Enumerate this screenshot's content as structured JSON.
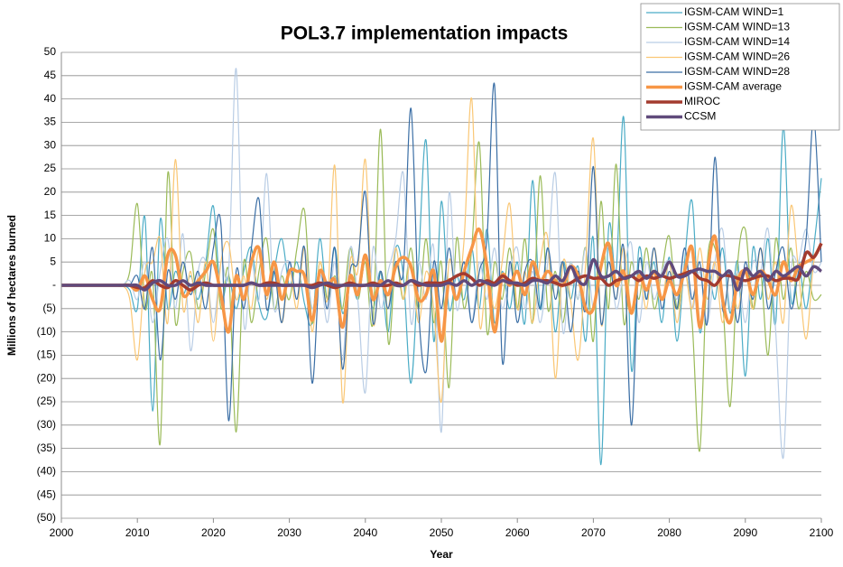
{
  "chart_data": {
    "type": "line",
    "title": "POL3.7 implementation impacts",
    "x_label": "Year",
    "y_label": "Millions of hectares burned",
    "x": [
      2000,
      2001,
      2002,
      2003,
      2004,
      2005,
      2006,
      2007,
      2008,
      2009,
      2010,
      2011,
      2012,
      2013,
      2014,
      2015,
      2016,
      2017,
      2018,
      2019,
      2020,
      2021,
      2022,
      2023,
      2024,
      2025,
      2026,
      2027,
      2028,
      2029,
      2030,
      2031,
      2032,
      2033,
      2034,
      2035,
      2036,
      2037,
      2038,
      2039,
      2040,
      2041,
      2042,
      2043,
      2044,
      2045,
      2046,
      2047,
      2048,
      2049,
      2050,
      2051,
      2052,
      2053,
      2054,
      2055,
      2056,
      2057,
      2058,
      2059,
      2060,
      2061,
      2062,
      2063,
      2064,
      2065,
      2066,
      2067,
      2068,
      2069,
      2070,
      2071,
      2072,
      2073,
      2074,
      2075,
      2076,
      2077,
      2078,
      2079,
      2080,
      2081,
      2082,
      2083,
      2084,
      2085,
      2086,
      2087,
      2088,
      2089,
      2090,
      2091,
      2092,
      2093,
      2094,
      2095,
      2096,
      2097,
      2098,
      2099,
      2100
    ],
    "xlim": [
      2000,
      2100
    ],
    "xticks": [
      2000,
      2010,
      2020,
      2030,
      2040,
      2050,
      2060,
      2070,
      2080,
      2090,
      2100
    ],
    "ylim": [
      -50,
      50
    ],
    "yticks": [
      50,
      45,
      40,
      35,
      30,
      25,
      20,
      15,
      10,
      5,
      {
        "value": 0,
        "label": "-"
      },
      {
        "value": -5,
        "label": "(5)"
      },
      {
        "value": -10,
        "label": "(10)"
      },
      {
        "value": -15,
        "label": "(15)"
      },
      {
        "value": -20,
        "label": "(20)"
      },
      {
        "value": -25,
        "label": "(25)"
      },
      {
        "value": -30,
        "label": "(30)"
      },
      {
        "value": -35,
        "label": "(35)"
      },
      {
        "value": -40,
        "label": "(40)"
      },
      {
        "value": -45,
        "label": "(45)"
      },
      {
        "value": -50,
        "label": "(50)"
      }
    ],
    "grid": true,
    "legend": "top-right",
    "series": [
      {
        "name": "IGSM-CAM WIND=1",
        "color": "#4bacc6",
        "width": 1.2,
        "values": [
          0,
          0,
          0,
          0,
          0,
          0,
          0,
          0,
          0,
          -1,
          -5,
          14.5,
          -27,
          14,
          -5,
          3,
          -2,
          2,
          -3,
          5,
          17,
          -3,
          2,
          -5,
          3,
          8,
          -4,
          -7,
          3,
          10,
          0,
          5,
          -4,
          -8,
          10,
          -3,
          8,
          -6,
          2,
          -3,
          5,
          -5,
          3,
          -10,
          8,
          2,
          -21,
          5,
          31,
          -12,
          18,
          -5,
          2,
          -3,
          8,
          -5,
          12,
          -8,
          3,
          -5,
          5,
          -8,
          22.5,
          -5,
          8,
          -10,
          5,
          -3,
          4,
          -12,
          10,
          -38.5,
          12,
          3,
          36,
          -18,
          8,
          -3,
          5,
          -8,
          6,
          -12,
          5,
          18,
          -10,
          4,
          -3,
          8,
          -6,
          5,
          -19.5,
          8,
          -3,
          10,
          -8,
          34,
          -3,
          5,
          -5,
          8,
          23
        ]
      },
      {
        "name": "IGSM-CAM WIND=13",
        "color": "#9bbb59",
        "width": 1.2,
        "values": [
          0,
          0,
          0,
          0,
          0,
          0,
          0,
          0,
          0,
          3,
          17.5,
          -5,
          2,
          -34,
          24,
          -8,
          3,
          7,
          -5,
          3,
          12,
          -5,
          3,
          -31.5,
          5,
          -8,
          3,
          10,
          -5,
          2,
          -3,
          8,
          16,
          -8,
          5,
          -3,
          2,
          -5,
          8,
          -3,
          5,
          -8,
          33.5,
          -12,
          5,
          -3,
          8,
          -5,
          10,
          -8,
          5,
          -22,
          10,
          -5,
          8,
          30.5,
          -10,
          5,
          -3,
          8,
          -5,
          10,
          -8,
          23.5,
          -5,
          3,
          -8,
          5,
          -3,
          8,
          -12,
          18,
          -5,
          26,
          -8,
          5,
          -3,
          8,
          -5,
          3,
          10.5,
          -5,
          3,
          -8,
          -35.5,
          5,
          8,
          -3,
          -26,
          5,
          12,
          -5,
          3,
          -15,
          10,
          -3,
          8,
          -5,
          3,
          -3,
          -2
        ]
      },
      {
        "name": "IGSM-CAM WIND=14",
        "color": "#b9cde5",
        "width": 1.2,
        "values": [
          0,
          0,
          0,
          0,
          0,
          0,
          0,
          0,
          0,
          1,
          -3,
          5,
          -8,
          3,
          10,
          -5,
          11,
          -14,
          3,
          5,
          -8,
          5,
          3,
          46.5,
          -8,
          5,
          -3,
          24,
          -5,
          3,
          5,
          -3,
          8,
          -5,
          3,
          -8,
          5,
          -16,
          8,
          -3,
          -23,
          8,
          -5,
          3,
          10,
          24,
          -8,
          5,
          -3,
          8,
          -31.5,
          19.5,
          -5,
          3,
          -8,
          5,
          -3,
          8,
          -5,
          3,
          8,
          -5,
          3,
          -8,
          5,
          24,
          -10,
          5,
          -3,
          8,
          -5,
          3,
          8,
          -5,
          3,
          9,
          -8,
          5,
          -3,
          3,
          5,
          -3,
          8,
          -5,
          3,
          -8,
          5,
          12,
          -5,
          3,
          -8,
          5,
          3,
          12,
          -10,
          -37,
          3,
          5,
          12,
          3,
          5
        ]
      },
      {
        "name": "IGSM-CAM WIND=26",
        "color": "#fac775",
        "width": 1.2,
        "values": [
          0,
          0,
          0,
          0,
          0,
          0,
          0,
          0,
          0,
          -3,
          -16,
          3,
          5,
          10,
          -8,
          27,
          -5,
          3,
          -8,
          5,
          -12,
          5,
          9,
          -3,
          2,
          -5,
          8,
          -3,
          5,
          -8,
          3,
          -5,
          8,
          -10,
          5,
          -3,
          25.5,
          -25,
          5,
          3,
          27,
          -8,
          3,
          -5,
          8,
          -3,
          5,
          -8,
          3,
          -5,
          -25,
          5,
          -3,
          10,
          40,
          -8,
          3,
          -5,
          5,
          17.5,
          -5,
          3,
          -8,
          5,
          10,
          -20,
          5,
          -3,
          -16,
          5,
          31.5,
          -8,
          5,
          -3,
          8,
          -5,
          3,
          -5,
          8,
          -3,
          5,
          -8,
          3,
          -5,
          8,
          -3,
          5,
          -8,
          3,
          -5,
          3,
          -5,
          8,
          -3,
          5,
          -8,
          17,
          3,
          -11.5,
          5,
          8
        ]
      },
      {
        "name": "IGSM-CAM WIND=28",
        "color": "#3a6ea5",
        "width": 1.2,
        "values": [
          0,
          0,
          0,
          0,
          0,
          0,
          0,
          0,
          0,
          0,
          2,
          -5,
          8,
          -16,
          3,
          -3,
          5,
          -2,
          3,
          -5,
          8,
          13,
          -29,
          3,
          -5,
          8,
          18.5,
          -5,
          3,
          -8,
          5,
          -3,
          8,
          -21,
          3,
          -5,
          8,
          -18,
          3,
          5,
          20,
          -8,
          3,
          -5,
          5,
          3,
          38,
          -5,
          -18.5,
          5,
          -5,
          8,
          -3,
          5,
          -8,
          3,
          10,
          43,
          -16,
          5,
          -8,
          3,
          5,
          -5,
          8,
          -3,
          5,
          -10,
          3,
          -5,
          25.5,
          -8,
          5,
          -3,
          8,
          -30,
          5,
          -3,
          8,
          -5,
          3,
          -5,
          8,
          -3,
          5,
          -8,
          27.5,
          -5,
          3,
          -8,
          5,
          -3,
          8,
          -5,
          3,
          8,
          -5,
          3,
          10,
          36,
          5
        ]
      },
      {
        "name": "IGSM-CAM average",
        "color": "#f79646",
        "width": 3.5,
        "values": [
          0,
          0,
          0,
          0,
          0,
          0,
          0,
          0,
          0,
          0,
          -1,
          2,
          -3,
          -5,
          6.5,
          6.5,
          -2,
          -1,
          1,
          3,
          5,
          -2,
          -10,
          2,
          -3,
          5,
          8,
          -2,
          5,
          -3,
          3,
          3,
          2,
          -7.5,
          3,
          0,
          1,
          -9,
          2,
          -2,
          6.5,
          -3,
          1,
          -2,
          4,
          6,
          4,
          -3,
          -2,
          3,
          -12,
          1,
          -3,
          3,
          8,
          12,
          4,
          -10,
          2,
          0,
          3,
          -2,
          5,
          1,
          3,
          1,
          0,
          4,
          2,
          -5,
          -5,
          4,
          9,
          0,
          3,
          -6,
          2,
          -1,
          3,
          -3,
          1,
          -2,
          3,
          8,
          -9,
          3,
          10.5,
          -3,
          -8,
          1,
          3,
          -2,
          3,
          1,
          -2,
          5,
          1,
          4,
          5,
          6,
          9
        ]
      },
      {
        "name": "MIROC",
        "color": "#a33b2f",
        "width": 3.5,
        "values": [
          0,
          0,
          0,
          0,
          0,
          0,
          0,
          0,
          0,
          0,
          -0.5,
          -0.5,
          1,
          0,
          -0.5,
          1,
          0,
          -1,
          0,
          0.5,
          0,
          0,
          0,
          0,
          0,
          0.5,
          0,
          0.5,
          0.5,
          0,
          0,
          0,
          0,
          0,
          0.5,
          0,
          -0.5,
          0,
          0.5,
          0,
          0,
          0.5,
          0,
          0,
          0.5,
          0,
          1,
          0,
          0.5,
          0.5,
          0.5,
          1,
          2,
          2.5,
          1.5,
          0,
          1,
          0.5,
          2,
          1,
          0,
          0.5,
          1.5,
          1,
          1,
          0.5,
          0,
          0.5,
          1.5,
          2,
          1.5,
          1.5,
          0,
          1,
          1.5,
          2,
          1,
          2,
          1.5,
          2,
          1.5,
          2,
          2.5,
          3,
          1.5,
          1,
          0,
          2,
          2,
          1.5,
          1,
          1.5,
          2,
          2,
          1,
          1.5,
          1.5,
          1.5,
          7,
          6,
          9
        ]
      },
      {
        "name": "CCSM",
        "color": "#604a7b",
        "width": 3.5,
        "values": [
          0,
          0,
          0,
          0,
          0,
          0,
          0,
          0,
          0,
          0,
          0,
          -1,
          0.5,
          1,
          0,
          0,
          1,
          0,
          0.5,
          0,
          0,
          0,
          0,
          0,
          0,
          0.5,
          0,
          0,
          0,
          0,
          0,
          0,
          0,
          -0.5,
          0,
          0.5,
          0,
          0,
          0,
          0,
          0,
          0,
          0,
          1,
          0,
          0,
          1,
          0.5,
          0,
          0,
          0,
          0.5,
          0,
          1,
          0,
          1,
          0.5,
          0,
          1,
          0.5,
          0.5,
          0,
          1,
          1,
          0.5,
          2,
          1,
          4,
          1,
          0.5,
          5.5,
          2,
          2,
          3,
          1.5,
          2,
          3,
          1.5,
          3,
          2,
          5,
          2,
          2,
          3,
          3.5,
          3,
          3,
          2,
          3,
          -1,
          3.5,
          2,
          3,
          1,
          3,
          2,
          3,
          4,
          2,
          4,
          3
        ]
      }
    ]
  }
}
